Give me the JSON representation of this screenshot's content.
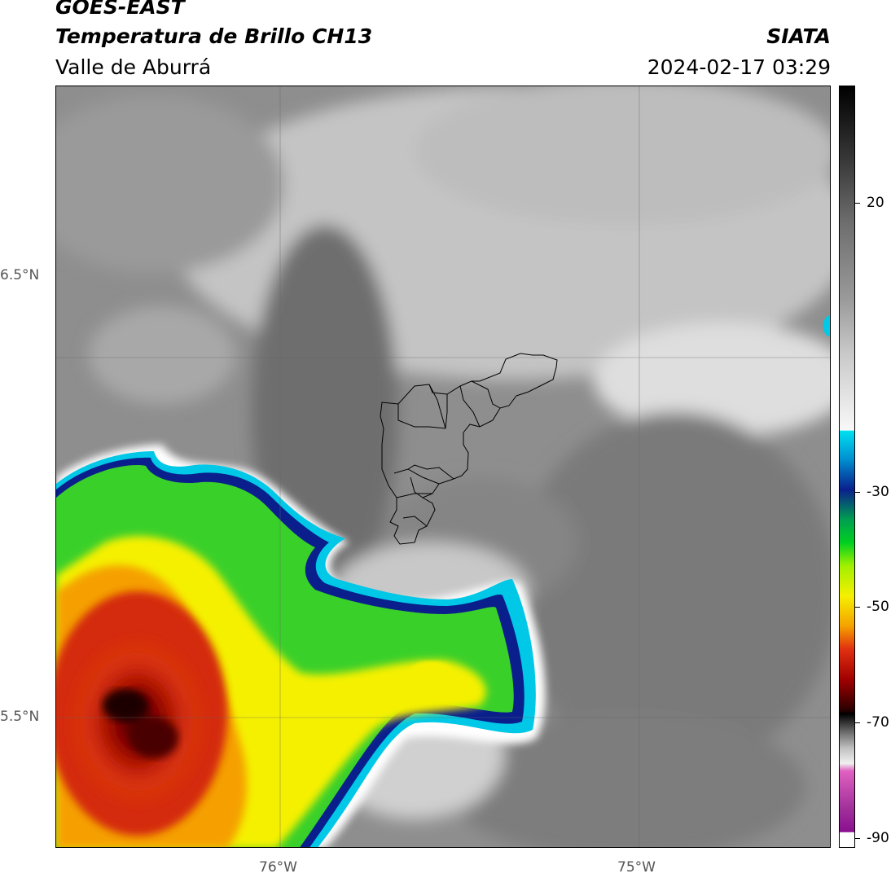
{
  "header": {
    "satellite": "GOES-EAST",
    "product": "Temperatura de Brillo CH13",
    "region": "Valle de Aburrá",
    "source": "SIATA",
    "timestamp": "2024-02-17 03:29"
  },
  "map": {
    "lat_labels": [
      "6.5°N",
      "5.5°N"
    ],
    "lon_labels": [
      "76°W",
      "75°W"
    ],
    "gridlines": true,
    "overlay": "Valle de Aburrá municipal boundaries"
  },
  "colorbar": {
    "ticks": [
      "20",
      "-30",
      "-50",
      "-70",
      "-90"
    ],
    "range": [
      -92,
      40
    ]
  },
  "colors": {
    "warm_gray": "#8c8c8c",
    "cloud_red": "#d42a0a",
    "cloud_yellow": "#f5f000",
    "cloud_green": "#3ad02a",
    "cloud_blue": "#0a1f8c",
    "cloud_cyan": "#00c8e6"
  }
}
